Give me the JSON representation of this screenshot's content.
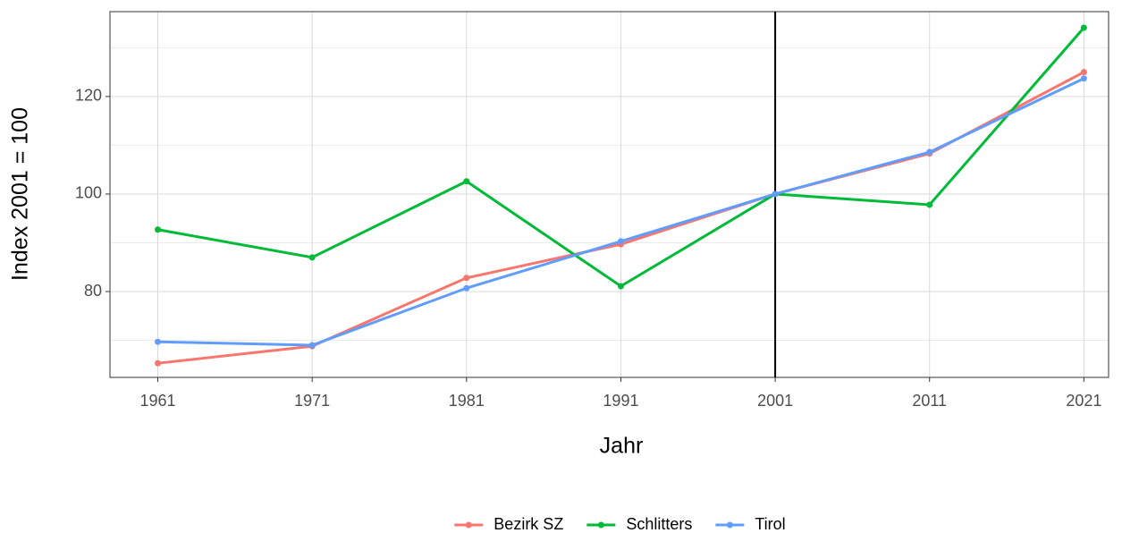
{
  "chart_data": {
    "type": "line",
    "x_label": "Jahr",
    "y_label": "Index 2001 = 100",
    "x": [
      1961,
      1971,
      1981,
      1991,
      2001,
      2011,
      2021
    ],
    "series": [
      {
        "name": "Bezirk SZ",
        "color": "#F8766D",
        "values": [
          65.3,
          68.8,
          82.8,
          89.7,
          100,
          108.3,
          125.0
        ]
      },
      {
        "name": "Schlitters",
        "color": "#00BA38",
        "values": [
          92.7,
          87.0,
          102.6,
          81.1,
          100,
          97.8,
          134.1
        ]
      },
      {
        "name": "Tirol",
        "color": "#619CFF",
        "values": [
          69.7,
          69.0,
          80.7,
          90.3,
          100,
          108.6,
          123.7
        ]
      }
    ],
    "xlim": [
      1957.9,
      2022.6
    ],
    "xticks": [
      1961,
      1971,
      1981,
      1991,
      2001,
      2011,
      2021
    ],
    "ylim": [
      62.4,
      137.4
    ],
    "yticks": [
      80,
      100,
      120
    ],
    "yminor": [
      70,
      90,
      110,
      130
    ],
    "vline": 2001,
    "grid": true,
    "legend": "bottom"
  }
}
